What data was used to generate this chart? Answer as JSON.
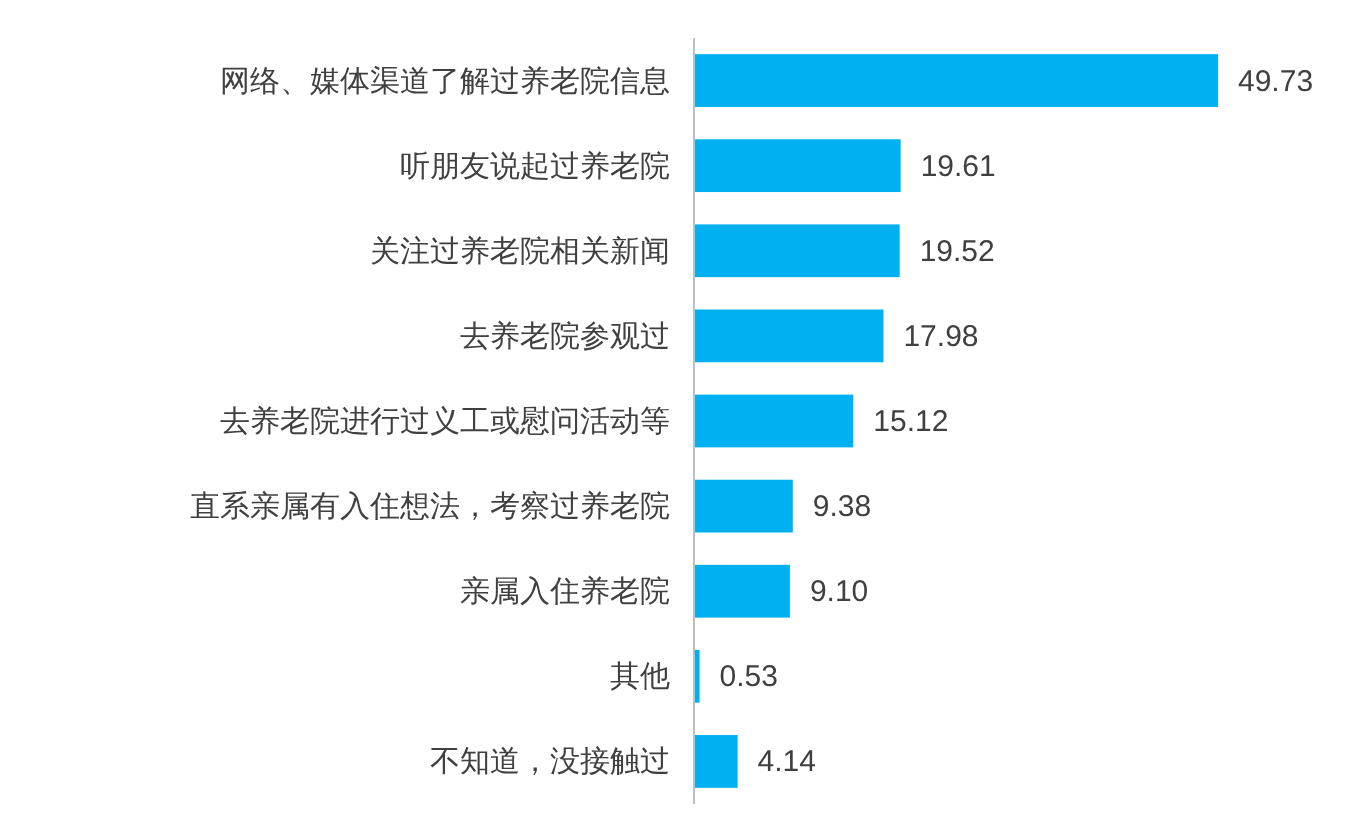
{
  "chart_data": {
    "type": "bar",
    "orientation": "horizontal",
    "data_labels": true,
    "color": "#00b0f0",
    "categories": [
      "网络、媒体渠道了解过养老院信息",
      "听朋友说起过养老院",
      "关注过养老院相关新闻",
      "去养老院参观过",
      "去养老院进行过义工或慰问活动等",
      "直系亲属有入住想法，考察过养老院",
      "亲属入住养老院",
      "其他",
      "不知道，没接触过"
    ],
    "values": [
      49.73,
      19.61,
      19.52,
      17.98,
      15.12,
      9.38,
      9.1,
      0.53,
      4.14
    ],
    "value_labels": [
      "49.73",
      "19.61",
      "19.52",
      "17.98",
      "15.12",
      "9.38",
      "9.10",
      "0.53",
      "4.14"
    ]
  }
}
